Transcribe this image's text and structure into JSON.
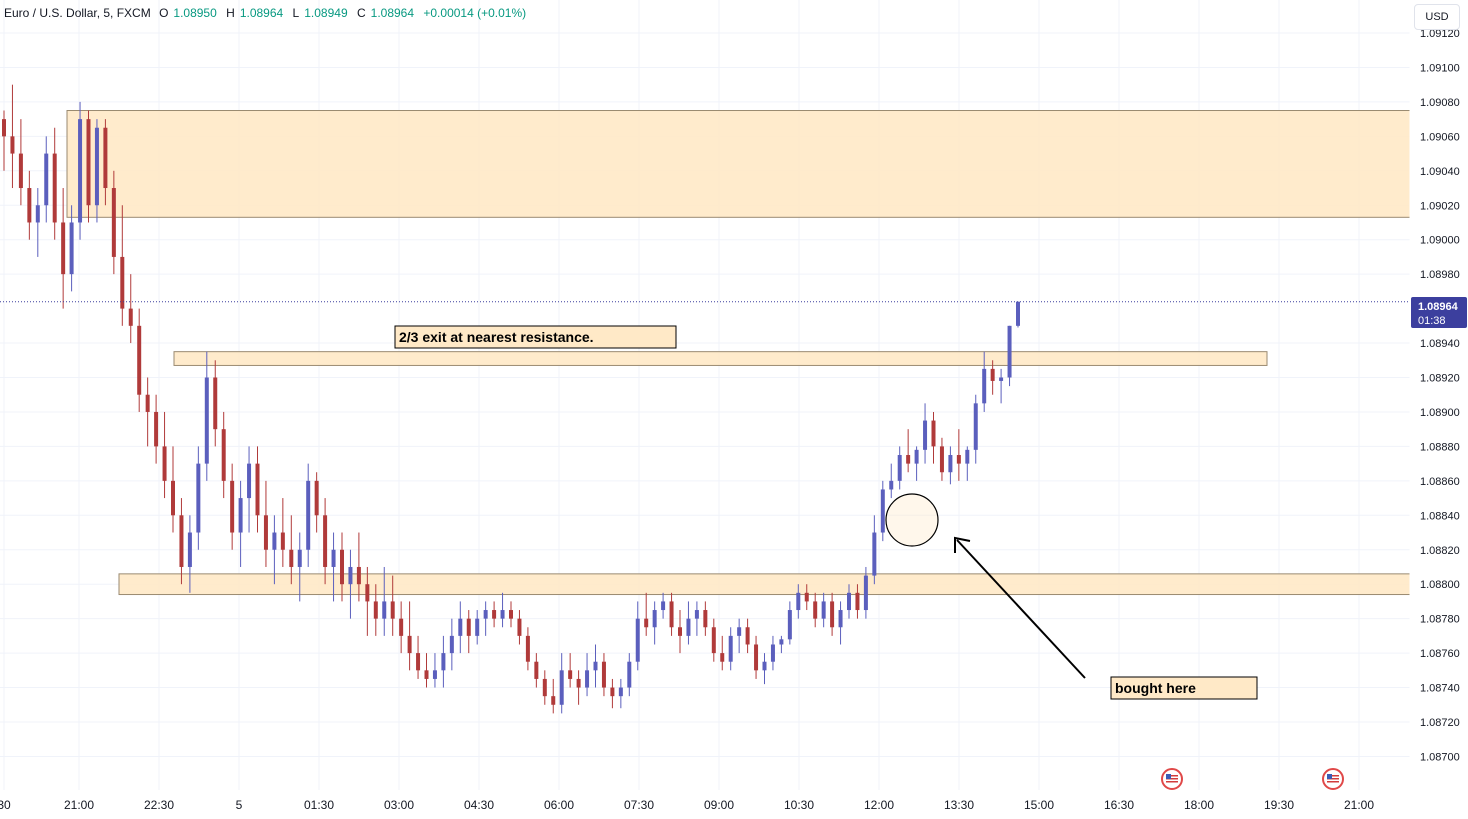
{
  "header": {
    "symbol": "Euro / U.S. Dollar, 5, FXCM",
    "open_label": "O",
    "open": "1.08950",
    "high_label": "H",
    "high": "1.08964",
    "low_label": "L",
    "low": "1.08949",
    "close_label": "C",
    "close": "1.08964",
    "change": "+0.00014 (+0.01%)"
  },
  "currency_button": "USD",
  "price_tag": {
    "price": "1.08964",
    "countdown": "01:38"
  },
  "annotations": {
    "exit_note": "2/3 exit at nearest resistance.",
    "entry_note": "bought here"
  },
  "colors": {
    "up": "#5b5fbd",
    "down": "#b03a3a",
    "zone_fill": "#ffe9c7",
    "zone_border": "#9a8a70",
    "price_tag": "#3c3f9e"
  },
  "chart_data": {
    "type": "candlestick",
    "timeframe": "5",
    "y_ticks": [
      "1.09120",
      "1.09100",
      "1.09080",
      "1.09060",
      "1.09040",
      "1.09020",
      "1.09000",
      "1.08980",
      "1.08940",
      "1.08920",
      "1.08900",
      "1.08880",
      "1.08860",
      "1.08840",
      "1.08820",
      "1.08800",
      "1.08780",
      "1.08760",
      "1.08740",
      "1.08720",
      "1.08700"
    ],
    "x_ticks": [
      "30",
      "21:00",
      "22:30",
      "5",
      "01:30",
      "03:00",
      "04:30",
      "06:00",
      "07:30",
      "09:00",
      "10:30",
      "12:00",
      "13:30",
      "15:00",
      "16:30",
      "18:00",
      "19:30",
      "21:00"
    ],
    "ylim": [
      1.0869,
      1.09125
    ],
    "zones": [
      {
        "name": "resistance-upper",
        "low": 1.09013,
        "high": 1.09075
      },
      {
        "name": "resistance-near",
        "low": 1.08927,
        "high": 1.08935
      },
      {
        "name": "support",
        "low": 1.08794,
        "high": 1.08806
      }
    ],
    "key_levels": [
      {
        "name": "entry",
        "x_time": "12:20",
        "price": 1.08842
      }
    ],
    "ohlc": [
      [
        1.0907,
        1.09075,
        1.0904,
        1.0906
      ],
      [
        1.0906,
        1.0909,
        1.0903,
        1.0905
      ],
      [
        1.0905,
        1.0907,
        1.0902,
        1.0903
      ],
      [
        1.0903,
        1.0904,
        1.09,
        1.0901
      ],
      [
        1.0901,
        1.0903,
        1.0899,
        1.0902
      ],
      [
        1.0902,
        1.0906,
        1.0901,
        1.0905
      ],
      [
        1.0905,
        1.09065,
        1.09,
        1.0901
      ],
      [
        1.0901,
        1.0903,
        1.0896,
        1.0898
      ],
      [
        1.0898,
        1.0902,
        1.0897,
        1.0901
      ],
      [
        1.0901,
        1.0908,
        1.09,
        1.0907
      ],
      [
        1.0907,
        1.09075,
        1.0901,
        1.0902
      ],
      [
        1.0902,
        1.0907,
        1.0901,
        1.09065
      ],
      [
        1.09065,
        1.0907,
        1.0902,
        1.0903
      ],
      [
        1.0903,
        1.0904,
        1.0898,
        1.0899
      ],
      [
        1.0899,
        1.0902,
        1.0895,
        1.0896
      ],
      [
        1.0896,
        1.0898,
        1.0894,
        1.0895
      ],
      [
        1.0895,
        1.0896,
        1.089,
        1.0891
      ],
      [
        1.0891,
        1.0892,
        1.0888,
        1.089
      ],
      [
        1.089,
        1.0891,
        1.0887,
        1.0888
      ],
      [
        1.0888,
        1.089,
        1.0885,
        1.0886
      ],
      [
        1.0886,
        1.0888,
        1.0883,
        1.0884
      ],
      [
        1.0884,
        1.0885,
        1.088,
        1.0881
      ],
      [
        1.0881,
        1.0884,
        1.08795,
        1.0883
      ],
      [
        1.0883,
        1.0888,
        1.0882,
        1.0887
      ],
      [
        1.0887,
        1.08935,
        1.0886,
        1.0892
      ],
      [
        1.0892,
        1.0893,
        1.0888,
        1.0889
      ],
      [
        1.0889,
        1.089,
        1.0885,
        1.0886
      ],
      [
        1.0886,
        1.0887,
        1.0882,
        1.0883
      ],
      [
        1.0883,
        1.0886,
        1.0881,
        1.0885
      ],
      [
        1.0885,
        1.0888,
        1.0883,
        1.0887
      ],
      [
        1.0887,
        1.0888,
        1.0883,
        1.0884
      ],
      [
        1.0884,
        1.0886,
        1.0881,
        1.0882
      ],
      [
        1.0882,
        1.0884,
        1.088,
        1.0883
      ],
      [
        1.0883,
        1.0885,
        1.0881,
        1.0882
      ],
      [
        1.0882,
        1.0884,
        1.088,
        1.0881
      ],
      [
        1.0881,
        1.0883,
        1.0879,
        1.0882
      ],
      [
        1.0882,
        1.0887,
        1.0881,
        1.0886
      ],
      [
        1.0886,
        1.08865,
        1.0883,
        1.0884
      ],
      [
        1.0884,
        1.0885,
        1.088,
        1.0881
      ],
      [
        1.0881,
        1.0883,
        1.0879,
        1.0882
      ],
      [
        1.0882,
        1.0883,
        1.0879,
        1.088
      ],
      [
        1.088,
        1.0882,
        1.0878,
        1.0881
      ],
      [
        1.0881,
        1.0883,
        1.0879,
        1.088
      ],
      [
        1.088,
        1.0881,
        1.0877,
        1.0879
      ],
      [
        1.0879,
        1.088,
        1.0877,
        1.0878
      ],
      [
        1.0878,
        1.0881,
        1.0877,
        1.0879
      ],
      [
        1.0879,
        1.08805,
        1.0877,
        1.0878
      ],
      [
        1.0878,
        1.0879,
        1.0876,
        1.0877
      ],
      [
        1.0877,
        1.0879,
        1.0875,
        1.0876
      ],
      [
        1.0876,
        1.0877,
        1.08745,
        1.0875
      ],
      [
        1.0875,
        1.0876,
        1.0874,
        1.08745
      ],
      [
        1.08745,
        1.0876,
        1.0874,
        1.0875
      ],
      [
        1.0875,
        1.0877,
        1.0874,
        1.0876
      ],
      [
        1.0876,
        1.0878,
        1.0875,
        1.0877
      ],
      [
        1.0877,
        1.0879,
        1.0876,
        1.0878
      ],
      [
        1.0878,
        1.08785,
        1.0876,
        1.0877
      ],
      [
        1.0877,
        1.08785,
        1.08765,
        1.0878
      ],
      [
        1.0878,
        1.0879,
        1.0877,
        1.08785
      ],
      [
        1.08785,
        1.0879,
        1.08775,
        1.0878
      ],
      [
        1.0878,
        1.08795,
        1.08775,
        1.08785
      ],
      [
        1.08785,
        1.0879,
        1.08775,
        1.0878
      ],
      [
        1.0878,
        1.08785,
        1.08765,
        1.0877
      ],
      [
        1.0877,
        1.08775,
        1.0875,
        1.08755
      ],
      [
        1.08755,
        1.0876,
        1.0874,
        1.08745
      ],
      [
        1.08745,
        1.0875,
        1.0873,
        1.08735
      ],
      [
        1.08735,
        1.08745,
        1.08725,
        1.0873
      ],
      [
        1.0873,
        1.0876,
        1.08725,
        1.0875
      ],
      [
        1.0875,
        1.0876,
        1.0874,
        1.08745
      ],
      [
        1.08745,
        1.0875,
        1.0873,
        1.0874
      ],
      [
        1.0874,
        1.0876,
        1.08735,
        1.0875
      ],
      [
        1.0875,
        1.08765,
        1.0874,
        1.08755
      ],
      [
        1.08755,
        1.0876,
        1.08735,
        1.0874
      ],
      [
        1.0874,
        1.08745,
        1.08728,
        1.08735
      ],
      [
        1.08735,
        1.08745,
        1.08728,
        1.0874
      ],
      [
        1.0874,
        1.0876,
        1.08735,
        1.08755
      ],
      [
        1.08755,
        1.0879,
        1.0875,
        1.0878
      ],
      [
        1.0878,
        1.08795,
        1.0877,
        1.08775
      ],
      [
        1.08775,
        1.0879,
        1.08765,
        1.08785
      ],
      [
        1.08785,
        1.08795,
        1.0878,
        1.0879
      ],
      [
        1.0879,
        1.08795,
        1.0877,
        1.08775
      ],
      [
        1.08775,
        1.08785,
        1.0876,
        1.0877
      ],
      [
        1.0877,
        1.0879,
        1.08765,
        1.0878
      ],
      [
        1.0878,
        1.0879,
        1.0877,
        1.08785
      ],
      [
        1.08785,
        1.0879,
        1.0877,
        1.08775
      ],
      [
        1.08775,
        1.0878,
        1.08755,
        1.0876
      ],
      [
        1.0876,
        1.0877,
        1.0875,
        1.08755
      ],
      [
        1.08755,
        1.08775,
        1.0875,
        1.0877
      ],
      [
        1.0877,
        1.0878,
        1.0876,
        1.08775
      ],
      [
        1.08775,
        1.0878,
        1.0876,
        1.08765
      ],
      [
        1.08765,
        1.0877,
        1.08745,
        1.0875
      ],
      [
        1.0875,
        1.0876,
        1.08742,
        1.08755
      ],
      [
        1.08755,
        1.0877,
        1.0875,
        1.08765
      ],
      [
        1.08765,
        1.0877,
        1.0876,
        1.08768
      ],
      [
        1.08768,
        1.0879,
        1.08765,
        1.08785
      ],
      [
        1.08785,
        1.088,
        1.0878,
        1.08795
      ],
      [
        1.08795,
        1.088,
        1.08785,
        1.0879
      ],
      [
        1.0879,
        1.08795,
        1.08775,
        1.0878
      ],
      [
        1.0878,
        1.08795,
        1.08775,
        1.0879
      ],
      [
        1.0879,
        1.08795,
        1.0877,
        1.08775
      ],
      [
        1.08775,
        1.0879,
        1.08765,
        1.08785
      ],
      [
        1.08785,
        1.088,
        1.0878,
        1.08795
      ],
      [
        1.08795,
        1.088,
        1.0878,
        1.08785
      ],
      [
        1.08785,
        1.0881,
        1.0878,
        1.08805
      ],
      [
        1.08805,
        1.0884,
        1.088,
        1.0883
      ],
      [
        1.0883,
        1.0886,
        1.08825,
        1.08855
      ],
      [
        1.08855,
        1.0887,
        1.0885,
        1.0886
      ],
      [
        1.0886,
        1.0888,
        1.08855,
        1.08875
      ],
      [
        1.08875,
        1.0889,
        1.08865,
        1.0887
      ],
      [
        1.0887,
        1.0888,
        1.0886,
        1.08878
      ],
      [
        1.08878,
        1.08905,
        1.0887,
        1.08895
      ],
      [
        1.08895,
        1.089,
        1.0887,
        1.0888
      ],
      [
        1.0888,
        1.08885,
        1.0886,
        1.08865
      ],
      [
        1.08865,
        1.0888,
        1.08858,
        1.08875
      ],
      [
        1.08875,
        1.0889,
        1.0886,
        1.0887
      ],
      [
        1.0887,
        1.0888,
        1.0886,
        1.08878
      ],
      [
        1.08878,
        1.0891,
        1.0887,
        1.08905
      ],
      [
        1.08905,
        1.08935,
        1.089,
        1.08925
      ],
      [
        1.08925,
        1.0893,
        1.0891,
        1.08918
      ],
      [
        1.08918,
        1.08925,
        1.08905,
        1.0892
      ],
      [
        1.0892,
        1.0895,
        1.08915,
        1.0895
      ],
      [
        1.0895,
        1.08964,
        1.08949,
        1.08964
      ]
    ]
  }
}
